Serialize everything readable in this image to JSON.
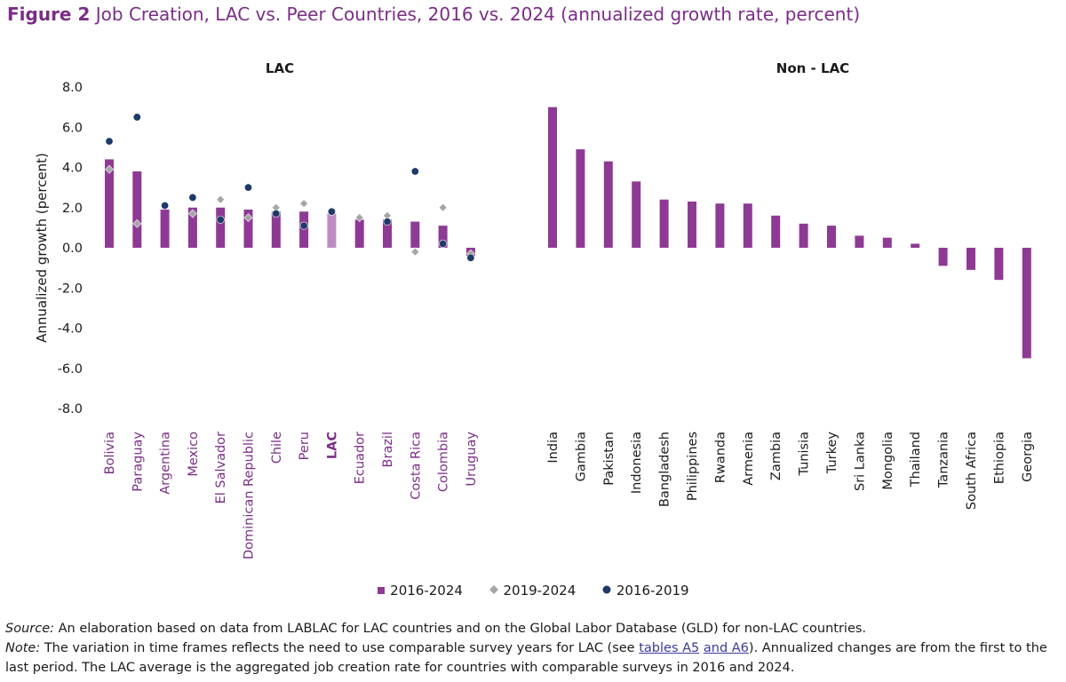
{
  "figure": {
    "label": "Figure 2",
    "title": "Job Creation, LAC vs. Peer Countries, 2016 vs. 2024 (annualized growth rate, percent)"
  },
  "footnotes": {
    "source_label": "Source:",
    "source_text": "An elaboration based on data from LABLAC for LAC countries and on the Global Labor Database (GLD) for non-LAC countries.",
    "note_label": "Note:",
    "note_text_1": "The variation in time frames reflects the need to use comparable survey years for LAC (see",
    "note_link_1": "tables A5",
    "note_link_2": "and A6",
    "note_text_2": "). Annualized changes are from the first to the last period. The LAC average is the aggregated job creation rate for countries with comparable surveys in 2016 and 2024."
  },
  "colors": {
    "bar": "#8e3a94",
    "bar_lac_avg": "#bd8dc2",
    "diamond": "#a6a6a6",
    "dot": "#1f3a68",
    "lac_label": "#7a2d86"
  },
  "chart_data": {
    "type": "bar",
    "ylabel": "Annualized growth (percent)",
    "ylim": [
      -8,
      8
    ],
    "yticks": [
      8,
      6,
      4,
      2,
      0,
      -2,
      -4,
      -6,
      -8
    ],
    "grid": false,
    "groups": [
      {
        "label": "LAC",
        "categories": [
          "Bolivia",
          "Paraguay",
          "Argentina",
          "Mexico",
          "El Salvador",
          "Dominican Republic",
          "Chile",
          "Peru",
          "LAC",
          "Ecuador",
          "Brazil",
          "Costa Rica",
          "Colombia",
          "Uruguay"
        ],
        "series": [
          {
            "name": "2016-2024",
            "marker": "bar",
            "values": [
              4.4,
              3.8,
              1.9,
              2.0,
              2.0,
              1.9,
              1.8,
              1.8,
              1.7,
              1.4,
              1.4,
              1.3,
              1.1,
              -0.4
            ]
          },
          {
            "name": "2019-2024",
            "marker": "diamond",
            "values": [
              3.9,
              1.2,
              null,
              1.7,
              2.4,
              1.5,
              2.0,
              2.2,
              null,
              1.5,
              1.6,
              -0.2,
              2.0,
              -0.3
            ]
          },
          {
            "name": "2016-2019",
            "marker": "dot",
            "values": [
              5.3,
              6.5,
              2.1,
              2.5,
              1.4,
              3.0,
              1.7,
              1.1,
              1.8,
              null,
              1.3,
              3.8,
              0.2,
              -0.5
            ]
          }
        ]
      },
      {
        "label": "Non - LAC",
        "categories": [
          "India",
          "Gambia",
          "Pakistan",
          "Indonesia",
          "Bangladesh",
          "Philippines",
          "Rwanda",
          "Armenia",
          "Zambia",
          "Tunisia",
          "Turkey",
          "Sri Lanka",
          "Mongolia",
          "Thailand",
          "Tanzania",
          "South Africa",
          "Ethiopia",
          "Georgia"
        ],
        "series": [
          {
            "name": "2016-2024",
            "marker": "bar",
            "values": [
              7.0,
              4.9,
              4.3,
              3.3,
              2.4,
              2.3,
              2.2,
              2.2,
              1.6,
              1.2,
              1.1,
              0.6,
              0.5,
              0.2,
              -0.9,
              -1.1,
              -1.6,
              -5.5
            ]
          }
        ]
      }
    ],
    "legend": [
      "2016-2024",
      "2019-2024",
      "2016-2019"
    ],
    "legend_position": "bottom-center"
  }
}
